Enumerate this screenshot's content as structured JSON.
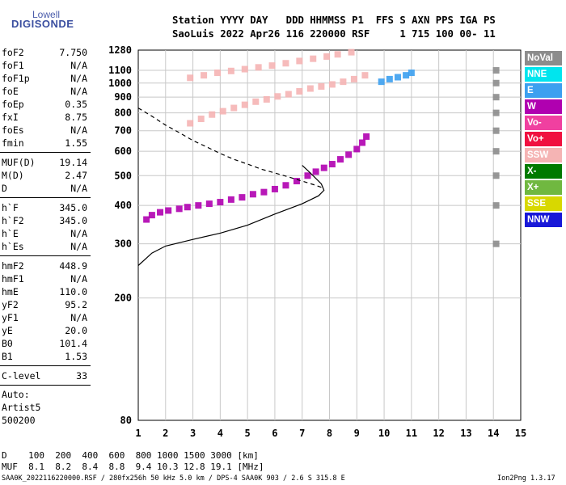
{
  "logo": {
    "top": "Lowell",
    "main": "DIGISONDE"
  },
  "header": {
    "line1": "Station YYYY DAY   DDD HHMMSS P1  FFS S AXN PPS IGA PS",
    "line2": "SaoLuis 2022 Apr26 116 220000 RSF     1 715 100 00- 11"
  },
  "params": [
    {
      "label": "foF2",
      "value": "7.750"
    },
    {
      "label": "foF1",
      "value": "N/A"
    },
    {
      "label": "foF1p",
      "value": "N/A"
    },
    {
      "label": "foE",
      "value": "N/A"
    },
    {
      "label": "foEp",
      "value": "0.35"
    },
    {
      "label": "fxI",
      "value": "8.75"
    },
    {
      "label": "foEs",
      "value": "N/A"
    },
    {
      "label": "fmin",
      "value": "1.55"
    },
    {
      "label": "MUF(D)",
      "value": "19.14"
    },
    {
      "label": "M(D)",
      "value": "2.47"
    },
    {
      "label": "D",
      "value": "N/A"
    },
    {
      "label": "h`F",
      "value": "345.0"
    },
    {
      "label": "h`F2",
      "value": "345.0"
    },
    {
      "label": "h`E",
      "value": "N/A"
    },
    {
      "label": "h`Es",
      "value": "N/A"
    },
    {
      "label": "hmF2",
      "value": "448.9"
    },
    {
      "label": "hmF1",
      "value": "N/A"
    },
    {
      "label": "hmE",
      "value": "110.0"
    },
    {
      "label": "yF2",
      "value": "95.2"
    },
    {
      "label": "yF1",
      "value": "N/A"
    },
    {
      "label": "yE",
      "value": "20.0"
    },
    {
      "label": "B0",
      "value": "101.4"
    },
    {
      "label": "B1",
      "value": "1.53"
    },
    {
      "label": "C-level",
      "value": "33"
    }
  ],
  "autoscaling": {
    "line1": "Auto:",
    "line2": "Artist5",
    "line3": "500200"
  },
  "legend": [
    {
      "label": "NoVal",
      "color": "#8c8c8c",
      "text_color": "#ffffff"
    },
    {
      "label": "NNE",
      "color": "#00e5ee",
      "text_color": "#ffffff"
    },
    {
      "label": "E",
      "color": "#3ca0f0",
      "text_color": "#ffffff"
    },
    {
      "label": "W",
      "color": "#b000b0",
      "text_color": "#ffffff"
    },
    {
      "label": "Vo-",
      "color": "#f040a0",
      "text_color": "#ffffff"
    },
    {
      "label": "Vo+",
      "color": "#f01040",
      "text_color": "#ffffff"
    },
    {
      "label": "SSW",
      "color": "#f5b4b4",
      "text_color": "#ffffff"
    },
    {
      "label": "X-",
      "color": "#007a00",
      "text_color": "#ffffff"
    },
    {
      "label": "X+",
      "color": "#70b840",
      "text_color": "#ffffff"
    },
    {
      "label": "SSE",
      "color": "#d8d800",
      "text_color": "#ffffff"
    },
    {
      "label": "NNW",
      "color": "#1818d8",
      "text_color": "#ffffff"
    }
  ],
  "footer": {
    "d_row": "D    100  200  400  600  800 1000 1500 3000 [km]",
    "muf_row": "MUF  8.1  8.2  8.4  8.8  9.4 10.3 12.8 19.1 [MHz]",
    "file_info": "SAA0K_2022116220000.RSF / 280fx256h 50 kHz 5.0 km / DPS-4 SAA0K 903 / 2.6 S 315.8 E",
    "version": "Ion2Png 1.3.17"
  },
  "chart_data": {
    "type": "scatter",
    "title": "",
    "xlabel": "",
    "ylabel": "",
    "xlim": [
      1,
      15
    ],
    "ylim": [
      80,
      1280
    ],
    "y_scale": "log",
    "x_ticks": [
      1,
      2,
      3,
      4,
      5,
      6,
      7,
      8,
      9,
      10,
      11,
      12,
      13,
      14,
      15
    ],
    "y_ticks": [
      80,
      200,
      300,
      400,
      500,
      600,
      700,
      800,
      900,
      1000,
      1100,
      1280
    ],
    "grid": true,
    "legend_position": "right",
    "series": [
      {
        "label": "ionogram-traces",
        "color_key": "W",
        "points": [
          [
            1.3,
            360
          ],
          [
            1.5,
            372
          ],
          [
            1.8,
            380
          ],
          [
            2.1,
            385
          ],
          [
            2.5,
            390
          ],
          [
            2.8,
            395
          ],
          [
            3.2,
            400
          ],
          [
            3.6,
            405
          ],
          [
            4.0,
            410
          ],
          [
            4.4,
            418
          ],
          [
            4.8,
            425
          ],
          [
            5.2,
            435
          ],
          [
            5.6,
            442
          ],
          [
            6.0,
            452
          ],
          [
            6.4,
            465
          ],
          [
            6.8,
            480
          ],
          [
            7.2,
            500
          ],
          [
            7.5,
            515
          ],
          [
            7.8,
            530
          ],
          [
            8.1,
            545
          ],
          [
            8.4,
            565
          ],
          [
            8.7,
            585
          ],
          [
            9.0,
            610
          ],
          [
            9.2,
            640
          ],
          [
            9.35,
            670
          ]
        ]
      },
      {
        "label": "second-hop",
        "color_key": "SSW",
        "points": [
          [
            2.9,
            740
          ],
          [
            3.3,
            765
          ],
          [
            3.7,
            790
          ],
          [
            4.1,
            810
          ],
          [
            4.5,
            830
          ],
          [
            4.9,
            850
          ],
          [
            5.3,
            870
          ],
          [
            5.7,
            885
          ],
          [
            6.1,
            905
          ],
          [
            6.5,
            920
          ],
          [
            6.9,
            940
          ],
          [
            7.3,
            960
          ],
          [
            7.7,
            975
          ],
          [
            8.1,
            990
          ],
          [
            8.5,
            1010
          ],
          [
            8.9,
            1030
          ],
          [
            9.3,
            1060
          ]
        ]
      },
      {
        "label": "third-hop",
        "color_key": "SSW",
        "points": [
          [
            2.9,
            1040
          ],
          [
            3.4,
            1060
          ],
          [
            3.9,
            1080
          ],
          [
            4.4,
            1095
          ],
          [
            4.9,
            1110
          ],
          [
            5.4,
            1125
          ],
          [
            5.9,
            1140
          ],
          [
            6.4,
            1160
          ],
          [
            6.9,
            1180
          ],
          [
            7.4,
            1200
          ],
          [
            7.9,
            1220
          ],
          [
            8.3,
            1240
          ],
          [
            8.8,
            1260
          ]
        ]
      },
      {
        "label": "E-region",
        "color_key": "E",
        "points": [
          [
            9.9,
            1010
          ],
          [
            10.2,
            1030
          ],
          [
            10.5,
            1045
          ],
          [
            10.8,
            1060
          ],
          [
            11.0,
            1080
          ]
        ]
      },
      {
        "label": "NoVal",
        "color_key": "NoVal",
        "points": [
          [
            14.1,
            300
          ],
          [
            14.1,
            400
          ],
          [
            14.1,
            500
          ],
          [
            14.1,
            600
          ],
          [
            14.1,
            700
          ],
          [
            14.1,
            800
          ],
          [
            14.1,
            900
          ],
          [
            14.1,
            1000
          ],
          [
            14.1,
            1100
          ]
        ]
      }
    ],
    "profile_curve": [
      [
        1,
        255
      ],
      [
        1.5,
        280
      ],
      [
        2,
        295
      ],
      [
        3,
        310
      ],
      [
        4,
        325
      ],
      [
        5,
        345
      ],
      [
        6,
        375
      ],
      [
        7,
        405
      ],
      [
        7.6,
        430
      ],
      [
        7.8,
        448
      ],
      [
        7.7,
        470
      ],
      [
        7.4,
        500
      ],
      [
        7.2,
        520
      ],
      [
        7.0,
        540
      ]
    ],
    "muf_curve": [
      [
        1,
        830
      ],
      [
        1.5,
        780
      ],
      [
        2,
        730
      ],
      [
        2.5,
        690
      ],
      [
        3,
        650
      ],
      [
        3.5,
        620
      ],
      [
        4,
        590
      ],
      [
        4.5,
        565
      ],
      [
        5,
        545
      ],
      [
        5.5,
        525
      ],
      [
        6,
        510
      ],
      [
        6.5,
        495
      ],
      [
        7,
        480
      ],
      [
        7.5,
        465
      ],
      [
        7.8,
        455
      ]
    ]
  }
}
